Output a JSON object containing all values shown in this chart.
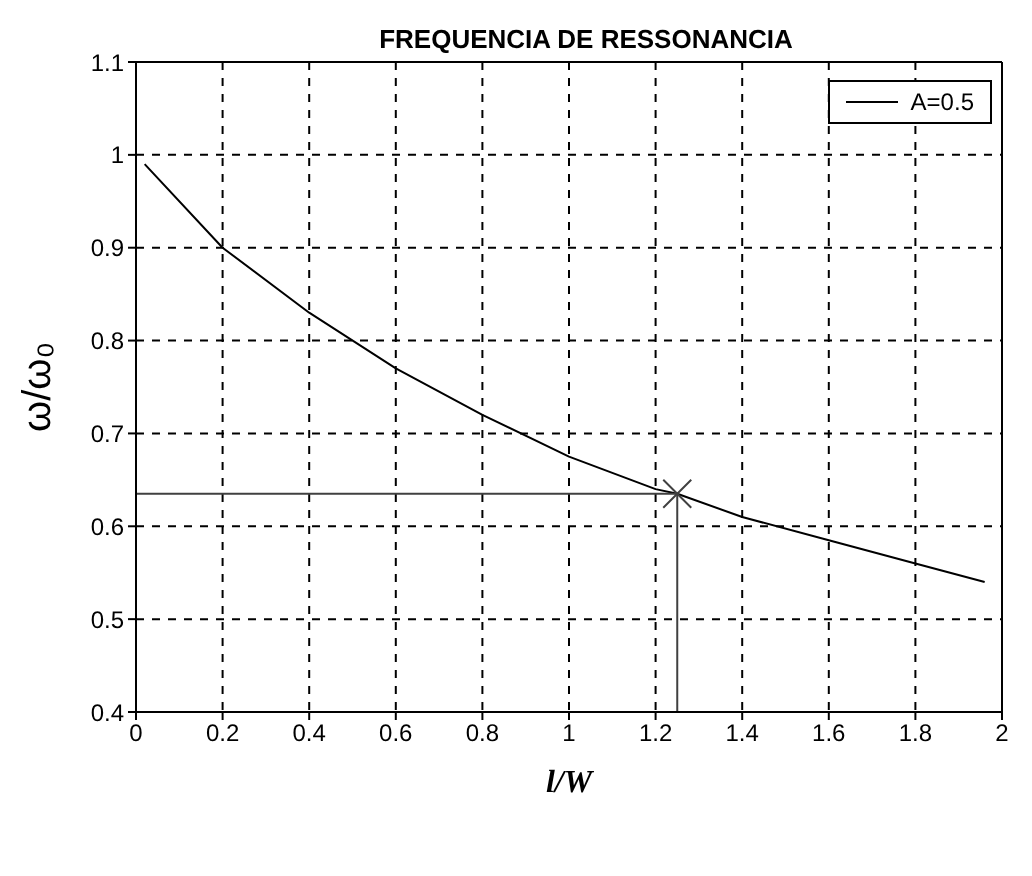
{
  "chart_data": {
    "type": "line",
    "title": "FREQUENCIA DE RESSONANCIA",
    "xlabel": "l/W",
    "ylabel": "ω/ω₀",
    "series": [
      {
        "name": "A=0.5",
        "color": "#000000",
        "x": [
          0.02,
          0.2,
          0.4,
          0.6,
          0.8,
          1.0,
          1.2,
          1.25,
          1.4,
          1.6,
          1.8,
          1.96
        ],
        "values": [
          0.99,
          0.9,
          0.83,
          0.77,
          0.72,
          0.675,
          0.64,
          0.635,
          0.61,
          0.585,
          0.56,
          0.54
        ]
      },
      {
        "color": "#404040",
        "x": [
          0,
          1.25,
          1.25
        ],
        "values": [
          0.635,
          0.635,
          0.4
        ]
      },
      {
        "type": "scatter",
        "color": "#404040",
        "marker": "cross",
        "x": [
          1.25
        ],
        "values": [
          0.635
        ]
      }
    ],
    "xlim": [
      0,
      2
    ],
    "xticks": [
      0,
      0.2,
      0.4,
      0.6,
      0.8,
      1,
      1.2,
      1.4,
      1.6,
      1.8,
      2
    ],
    "ylim": [
      0.4,
      1.1
    ],
    "yticks": [
      0.4,
      0.5,
      0.6,
      0.7,
      0.8,
      0.9,
      1,
      1.1
    ],
    "grid": true,
    "legend": "top right",
    "marker": "none",
    "line_style": "solid"
  }
}
